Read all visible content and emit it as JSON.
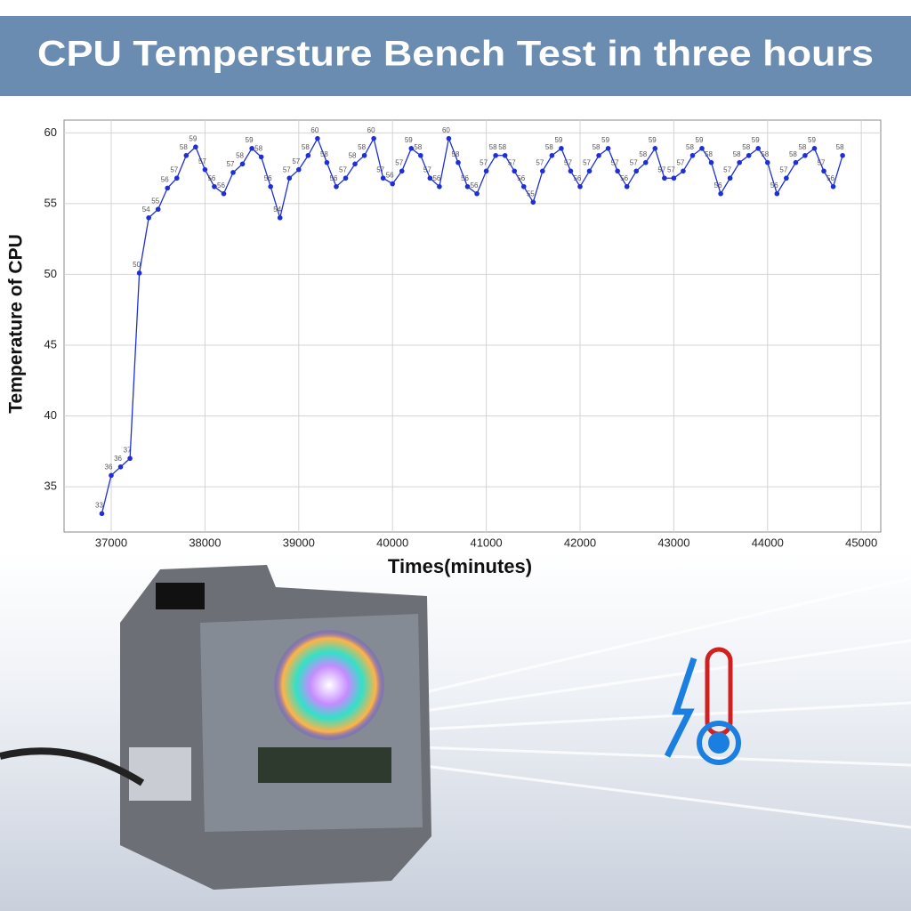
{
  "chart_data": {
    "type": "line",
    "title": "CPU Tempersture Bench Test in three hours",
    "x_label": "Times(minutes)",
    "y_label": "Temperature of CPU",
    "x": [
      36900,
      37000,
      37100,
      37200,
      37300,
      37400,
      37500,
      37600,
      37700,
      37800,
      37900,
      38000,
      38100,
      38200,
      38300,
      38400,
      38500,
      38600,
      38700,
      38800,
      38900,
      39000,
      39100,
      39200,
      39300,
      39400,
      39500,
      39600,
      39700,
      39800,
      39900,
      40000,
      40100,
      40200,
      40300,
      40400,
      40500,
      40600,
      40700,
      40800,
      40900,
      41000,
      41100,
      41200,
      41300,
      41400,
      41500,
      41600,
      41700,
      41800,
      41900,
      42000,
      42100,
      42200,
      42300,
      42400,
      42500,
      42600,
      42700,
      42800,
      42900,
      43000,
      43100,
      43200,
      43300,
      43400,
      43500,
      43600,
      43700,
      43800,
      43900,
      44000,
      44100,
      44200,
      44300,
      44400,
      44500,
      44600,
      44700,
      44800
    ],
    "series": [
      {
        "name": "CPU temperature",
        "color": "#1f2fd6",
        "values": [
          33.1,
          35.8,
          36.4,
          37.0,
          50.1,
          54.0,
          54.6,
          56.1,
          56.8,
          58.4,
          59.0,
          57.4,
          56.2,
          55.7,
          57.2,
          57.8,
          58.9,
          58.3,
          56.2,
          54.0,
          56.8,
          57.4,
          58.4,
          59.6,
          57.9,
          56.2,
          56.8,
          57.8,
          58.4,
          59.6,
          56.8,
          56.4,
          57.3,
          58.9,
          58.4,
          56.8,
          56.2,
          59.6,
          57.9,
          56.2,
          55.7,
          57.3,
          58.4,
          58.4,
          57.3,
          56.2,
          55.1,
          57.3,
          58.4,
          58.9,
          57.3,
          56.2,
          57.3,
          58.4,
          58.9,
          57.3,
          56.2,
          57.3,
          57.9,
          58.9,
          56.8,
          56.8,
          57.3,
          58.4,
          58.9,
          57.9,
          55.7,
          56.8,
          57.9,
          58.4,
          58.9,
          57.9,
          55.7,
          56.8,
          57.9,
          58.4,
          58.9,
          57.3,
          56.2,
          58.4
        ],
        "value_labels": [
          "33",
          "36",
          "36",
          "37",
          "50",
          "54",
          "55",
          "56",
          "57",
          "58",
          "59",
          "57",
          "56",
          "56",
          "57",
          "58",
          "59",
          "58",
          "56",
          "54",
          "57",
          "57",
          "58",
          "60",
          "58",
          "56",
          "57",
          "58",
          "58",
          "60",
          "57",
          "56",
          "57",
          "59",
          "58",
          "57",
          "56",
          "60",
          "58",
          "56",
          "56",
          "57",
          "58",
          "58",
          "57",
          "56",
          "55",
          "57",
          "58",
          "59",
          "57",
          "56",
          "57",
          "58",
          "59",
          "57",
          "56",
          "57",
          "58",
          "59",
          "57",
          "57",
          "57",
          "58",
          "59",
          "58",
          "56",
          "57",
          "58",
          "58",
          "59",
          "58",
          "56",
          "57",
          "58",
          "58",
          "59",
          "57",
          "56",
          "58"
        ]
      }
    ],
    "xlim": [
      36497,
      45207
    ],
    "ylim": [
      31.8,
      60.9
    ],
    "xticks": [
      37000,
      38000,
      39000,
      40000,
      41000,
      42000,
      43000,
      44000,
      45000
    ],
    "yticks": [
      35,
      40,
      45,
      50,
      55,
      60
    ],
    "grid": true
  }
}
